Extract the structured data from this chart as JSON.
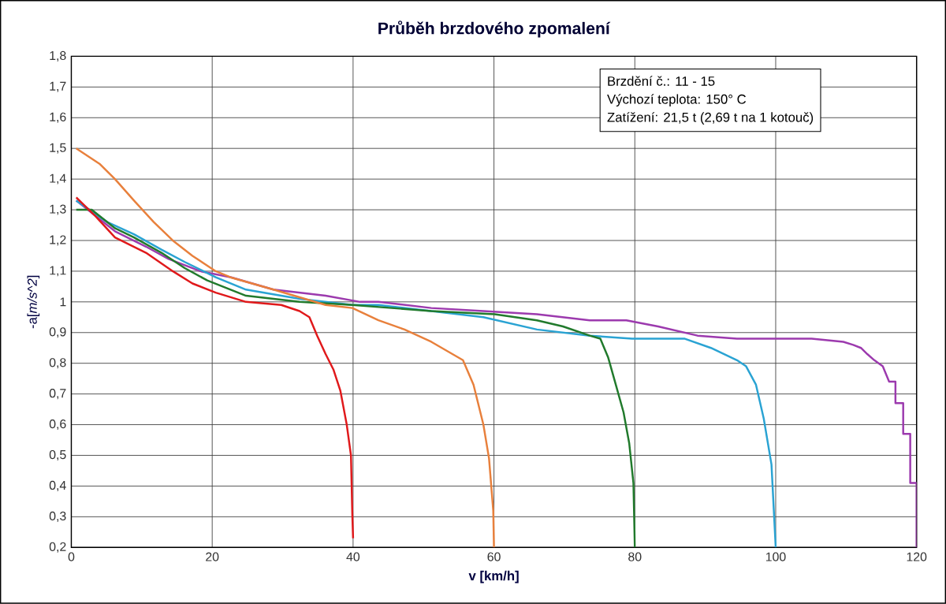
{
  "chart_data": {
    "type": "line",
    "title": "**Průběh brzdového zpomalení**",
    "xlabel": "**v [km/h]**",
    "ylabel": "-a[*m/s^2*]",
    "annotations": [
      "Brzdění č.: 11 - 15",
      "Výchozí teplota: 150° C",
      "Zatížení: 21,5 t (2,69 t na 1 kotouč)"
    ],
    "xlim": [
      0,
      120
    ],
    "xticks": [
      0,
      20,
      40,
      60,
      80,
      100,
      120
    ],
    "ylim": [
      0.2,
      1.8
    ],
    "yticks": [
      {
        "value": 0.2,
        "label": "0,2"
      },
      {
        "value": 0.3,
        "label": "0,3"
      },
      {
        "value": 0.4,
        "label": "0,4"
      },
      {
        "value": 0.5,
        "label": "0,5"
      },
      {
        "value": 0.6,
        "label": "0,6"
      },
      {
        "value": 0.7,
        "label": "0,7"
      },
      {
        "value": 0.8,
        "label": "0,8"
      },
      {
        "value": 0.9,
        "label": "0,9"
      },
      {
        "value": 1,
        "label": "1"
      },
      {
        "value": 1.1,
        "label": "1,1"
      },
      {
        "value": 1.2,
        "label": "1,2"
      },
      {
        "value": 1.3,
        "label": "1,3"
      },
      {
        "value": 1.4,
        "label": "1,4"
      },
      {
        "value": 1.5,
        "label": "1,5"
      },
      {
        "value": 1.6,
        "label": "1,6"
      },
      {
        "value": 1.7,
        "label": "1,7"
      },
      {
        "value": 1.8,
        "label": "1,8"
      }
    ],
    "grid": true,
    "line_style": "solid",
    "marker": "none",
    "series": [
      {
        "color": "#9c3aae",
        "x": [
          0.7,
          4.0,
          6.2,
          10.6,
          13.8,
          18.3,
          22.7,
          28.7,
          36.1,
          41,
          43.6,
          51.1,
          58.5,
          66.1,
          73.6,
          78.8,
          83.3,
          88.9,
          94.5,
          100.1,
          105.1,
          109.6,
          111,
          112.1,
          113,
          114,
          115.2,
          116.1,
          117,
          117,
          118.1,
          118.1,
          119.1,
          119.1,
          120,
          120
        ],
        "values": [
          1.33,
          1.27,
          1.23,
          1.18,
          1.14,
          1.1,
          1.08,
          1.04,
          1.02,
          1.0,
          1.0,
          0.98,
          0.97,
          0.96,
          0.94,
          0.94,
          0.92,
          0.89,
          0.88,
          0.88,
          0.88,
          0.87,
          0.86,
          0.85,
          0.83,
          0.81,
          0.79,
          0.74,
          0.74,
          0.67,
          0.67,
          0.57,
          0.57,
          0.41,
          0.41,
          0.2
        ]
      },
      {
        "color": "#2aa3d3",
        "x": [
          0.7,
          5.1,
          8.9,
          12.8,
          16.1,
          20.5,
          24.8,
          32.4,
          39.9,
          43.6,
          51.1,
          58.5,
          66.1,
          73.6,
          79.6,
          83.3,
          87.1,
          90.8,
          94.5,
          95.8,
          97.2,
          98.3,
          99.4,
          100
        ],
        "values": [
          1.33,
          1.26,
          1.22,
          1.17,
          1.13,
          1.08,
          1.04,
          1.01,
          0.99,
          0.99,
          0.97,
          0.95,
          0.91,
          0.89,
          0.88,
          0.88,
          0.88,
          0.85,
          0.81,
          0.79,
          0.73,
          0.62,
          0.47,
          0.2
        ]
      },
      {
        "color": "#217a2c",
        "x": [
          0.7,
          2.9,
          6.2,
          8.9,
          12.8,
          16.1,
          19.3,
          24.8,
          32.4,
          39.9,
          51.1,
          60.1,
          66.1,
          69.8,
          73.6,
          75.1,
          76.2,
          77.3,
          78.4,
          79.2,
          79.8,
          80
        ],
        "values": [
          1.3,
          1.3,
          1.24,
          1.21,
          1.16,
          1.11,
          1.07,
          1.02,
          1.0,
          0.99,
          0.97,
          0.96,
          0.94,
          0.92,
          0.89,
          0.88,
          0.82,
          0.73,
          0.64,
          0.54,
          0.41,
          0.2
        ]
      },
      {
        "color": "#e8803c",
        "x": [
          0.7,
          4.0,
          6.2,
          8.9,
          11.7,
          14.4,
          17.2,
          20.5,
          22.6,
          28.7,
          36.1,
          39.9,
          43.6,
          47.3,
          51.1,
          55.6,
          57.1,
          58.5,
          59.3,
          59.9,
          60
        ],
        "values": [
          1.5,
          1.45,
          1.4,
          1.33,
          1.26,
          1.2,
          1.15,
          1.1,
          1.08,
          1.04,
          0.99,
          0.98,
          0.94,
          0.91,
          0.87,
          0.81,
          0.73,
          0.6,
          0.49,
          0.32,
          0.2
        ]
      },
      {
        "color": "#e0191b",
        "x": [
          0.7,
          3.4,
          6.2,
          10.6,
          14.4,
          17.2,
          20.5,
          24.8,
          29.8,
          32.4,
          33.8,
          34.9,
          36.1,
          37.2,
          38.2,
          39.1,
          39.7,
          39.9,
          40
        ],
        "values": [
          1.34,
          1.28,
          1.21,
          1.16,
          1.1,
          1.06,
          1.03,
          1.0,
          0.99,
          0.97,
          0.95,
          0.89,
          0.83,
          0.78,
          0.71,
          0.6,
          0.5,
          0.3,
          0.23
        ]
      }
    ]
  }
}
